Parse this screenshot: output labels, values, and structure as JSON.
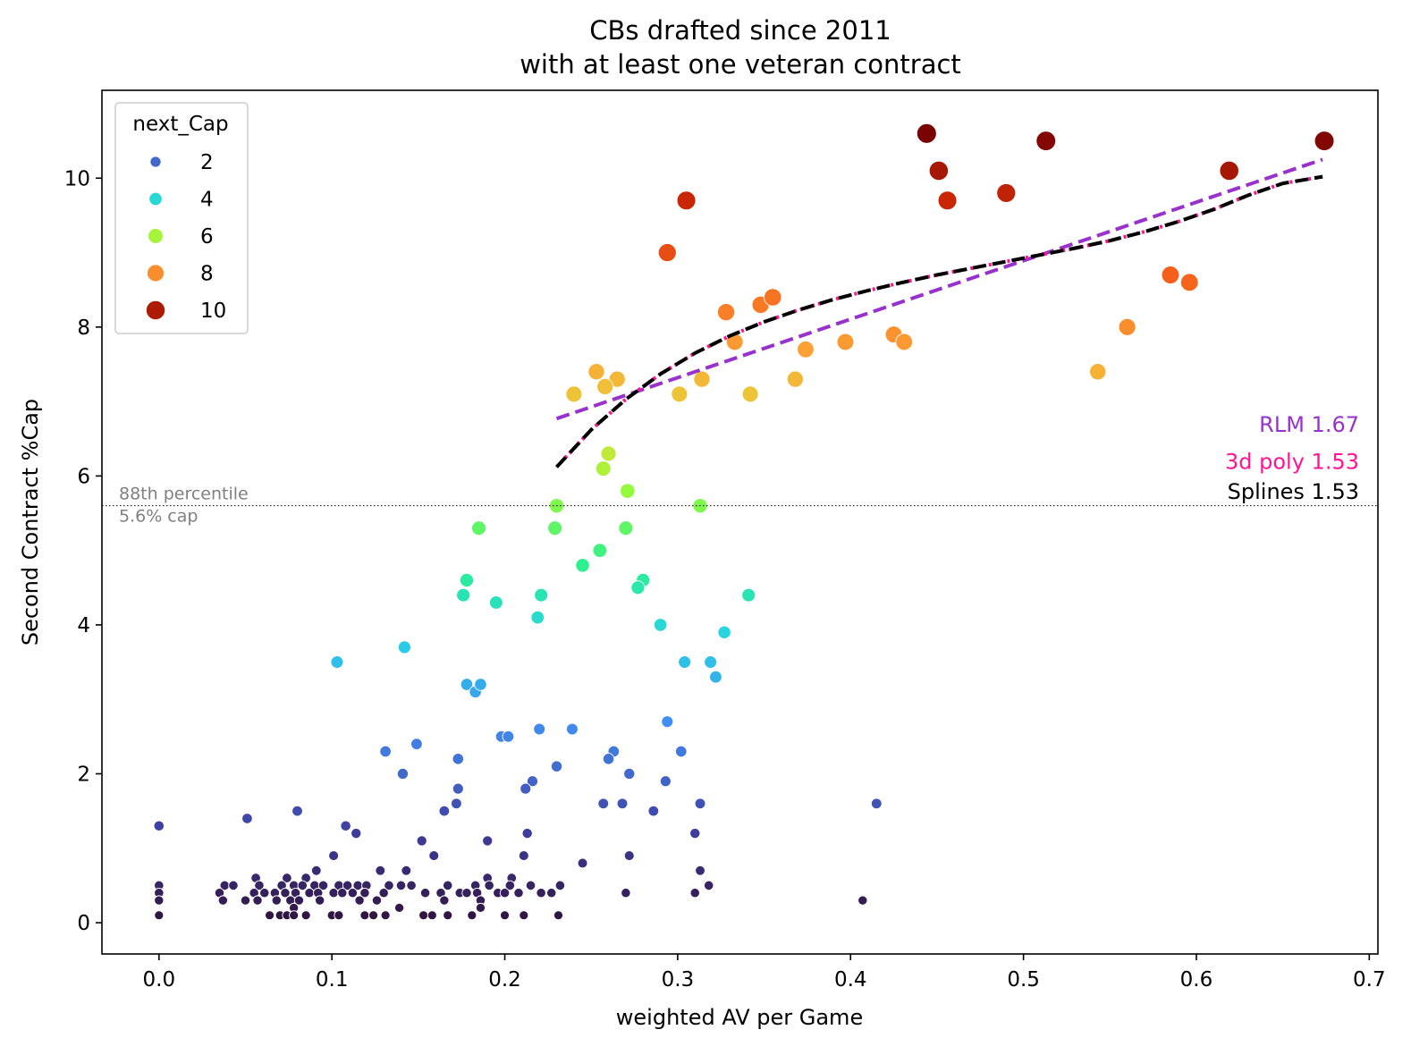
{
  "chart_data": {
    "type": "scatter",
    "title_line1": "CBs drafted since 2011",
    "title_line2": "with at least one veteran contract",
    "xlabel": "weighted AV per Game",
    "ylabel": "Second Contract %Cap",
    "xlim": [
      -0.033,
      0.705
    ],
    "ylim": [
      -0.42,
      11.18
    ],
    "x_ticks": [
      0.0,
      0.1,
      0.2,
      0.3,
      0.4,
      0.5,
      0.6,
      0.7
    ],
    "x_tick_labels": [
      "0.0",
      "0.1",
      "0.2",
      "0.3",
      "0.4",
      "0.5",
      "0.6",
      "0.7"
    ],
    "y_ticks": [
      0,
      2,
      4,
      6,
      8,
      10
    ],
    "y_tick_labels": [
      "0",
      "2",
      "4",
      "6",
      "8",
      "10"
    ],
    "grid": false,
    "legend": {
      "title": "next_Cap",
      "placement": "top-left",
      "entries": [
        {
          "label": "2",
          "value": 2
        },
        {
          "label": "4",
          "value": 4
        },
        {
          "label": "6",
          "value": 6
        },
        {
          "label": "8",
          "value": 8
        },
        {
          "label": "10",
          "value": 10
        }
      ]
    },
    "reference_line": {
      "y": 5.6,
      "label_line1": "88th percentile",
      "label_line2": "5.6% cap",
      "color": "#808080"
    },
    "fits": [
      {
        "label": "RLM 1.67",
        "color": "#9932CC",
        "style": "dashed",
        "x": [
          0.23,
          0.673
        ],
        "y": [
          6.77,
          10.25
        ]
      },
      {
        "label": "3d poly 1.53",
        "color": "#FF1493",
        "style": "dotted",
        "x": [
          0.23,
          0.25,
          0.27,
          0.29,
          0.31,
          0.33,
          0.35,
          0.37,
          0.39,
          0.41,
          0.43,
          0.45,
          0.47,
          0.49,
          0.51,
          0.53,
          0.55,
          0.57,
          0.59,
          0.61,
          0.63,
          0.65,
          0.673
        ],
        "y": [
          6.12,
          6.62,
          7.03,
          7.37,
          7.65,
          7.88,
          8.07,
          8.23,
          8.37,
          8.49,
          8.6,
          8.7,
          8.79,
          8.88,
          8.97,
          9.06,
          9.16,
          9.28,
          9.42,
          9.58,
          9.77,
          9.93,
          10.02
        ]
      },
      {
        "label": "Splines 1.53",
        "color": "#000000",
        "style": "dashed",
        "x": [
          0.23,
          0.25,
          0.27,
          0.29,
          0.31,
          0.33,
          0.35,
          0.37,
          0.39,
          0.41,
          0.43,
          0.45,
          0.47,
          0.49,
          0.51,
          0.53,
          0.55,
          0.57,
          0.59,
          0.61,
          0.63,
          0.65,
          0.673
        ],
        "y": [
          6.12,
          6.62,
          7.03,
          7.37,
          7.65,
          7.88,
          8.07,
          8.23,
          8.37,
          8.49,
          8.6,
          8.7,
          8.79,
          8.88,
          8.97,
          9.06,
          9.16,
          9.28,
          9.42,
          9.58,
          9.77,
          9.93,
          10.02
        ]
      }
    ],
    "annotations": [
      {
        "text": "RLM 1.67",
        "color": "#9932CC",
        "y": 6.7
      },
      {
        "text": "3d poly 1.53",
        "color": "#FF1493",
        "y": 6.2
      },
      {
        "text": "Splines 1.53",
        "color": "#000000",
        "y": 5.8
      }
    ],
    "points": [
      [
        0.444,
        10.6
      ],
      [
        0.513,
        10.5
      ],
      [
        0.674,
        10.5
      ],
      [
        0.451,
        10.1
      ],
      [
        0.619,
        10.1
      ],
      [
        0.305,
        9.7
      ],
      [
        0.456,
        9.7
      ],
      [
        0.49,
        9.8
      ],
      [
        0.294,
        9.0
      ],
      [
        0.328,
        8.2
      ],
      [
        0.348,
        8.3
      ],
      [
        0.355,
        8.4
      ],
      [
        0.585,
        8.7
      ],
      [
        0.596,
        8.6
      ],
      [
        0.333,
        7.8
      ],
      [
        0.425,
        7.9
      ],
      [
        0.431,
        7.8
      ],
      [
        0.56,
        8.0
      ],
      [
        0.374,
        7.7
      ],
      [
        0.397,
        7.8
      ],
      [
        0.253,
        7.4
      ],
      [
        0.265,
        7.3
      ],
      [
        0.258,
        7.2
      ],
      [
        0.314,
        7.3
      ],
      [
        0.368,
        7.3
      ],
      [
        0.543,
        7.4
      ],
      [
        0.24,
        7.1
      ],
      [
        0.301,
        7.1
      ],
      [
        0.342,
        7.1
      ],
      [
        0.26,
        6.3
      ],
      [
        0.257,
        6.1
      ],
      [
        0.23,
        5.6
      ],
      [
        0.313,
        5.6
      ],
      [
        0.271,
        5.8
      ],
      [
        0.185,
        5.3
      ],
      [
        0.229,
        5.3
      ],
      [
        0.27,
        5.3
      ],
      [
        0.255,
        5.0
      ],
      [
        0.245,
        4.8
      ],
      [
        0.178,
        4.6
      ],
      [
        0.176,
        4.4
      ],
      [
        0.195,
        4.3
      ],
      [
        0.221,
        4.4
      ],
      [
        0.28,
        4.6
      ],
      [
        0.277,
        4.5
      ],
      [
        0.341,
        4.4
      ],
      [
        0.219,
        4.1
      ],
      [
        0.29,
        4.0
      ],
      [
        0.327,
        3.9
      ],
      [
        0.142,
        3.7
      ],
      [
        0.103,
        3.5
      ],
      [
        0.304,
        3.5
      ],
      [
        0.319,
        3.5
      ],
      [
        0.322,
        3.3
      ],
      [
        0.178,
        3.2
      ],
      [
        0.183,
        3.1
      ],
      [
        0.186,
        3.2
      ],
      [
        0.294,
        2.7
      ],
      [
        0.198,
        2.5
      ],
      [
        0.202,
        2.5
      ],
      [
        0.22,
        2.6
      ],
      [
        0.239,
        2.6
      ],
      [
        0.149,
        2.4
      ],
      [
        0.131,
        2.3
      ],
      [
        0.263,
        2.3
      ],
      [
        0.302,
        2.3
      ],
      [
        0.173,
        2.2
      ],
      [
        0.26,
        2.2
      ],
      [
        0.23,
        2.1
      ],
      [
        0.141,
        2.0
      ],
      [
        0.272,
        2.0
      ],
      [
        0.216,
        1.9
      ],
      [
        0.293,
        1.9
      ],
      [
        0.173,
        1.8
      ],
      [
        0.212,
        1.8
      ],
      [
        0.172,
        1.6
      ],
      [
        0.257,
        1.6
      ],
      [
        0.268,
        1.6
      ],
      [
        0.313,
        1.6
      ],
      [
        0.415,
        1.6
      ],
      [
        0.08,
        1.5
      ],
      [
        0.165,
        1.5
      ],
      [
        0.286,
        1.5
      ],
      [
        0.051,
        1.4
      ],
      [
        0.0,
        1.3
      ],
      [
        0.108,
        1.3
      ],
      [
        0.114,
        1.2
      ],
      [
        0.213,
        1.2
      ],
      [
        0.31,
        1.2
      ],
      [
        0.152,
        1.1
      ],
      [
        0.19,
        1.1
      ],
      [
        0.101,
        0.9
      ],
      [
        0.159,
        0.9
      ],
      [
        0.211,
        0.9
      ],
      [
        0.272,
        0.9
      ],
      [
        0.245,
        0.8
      ],
      [
        0.128,
        0.7
      ],
      [
        0.143,
        0.7
      ],
      [
        0.091,
        0.7
      ],
      [
        0.313,
        0.7
      ],
      [
        0.056,
        0.6
      ],
      [
        0.074,
        0.6
      ],
      [
        0.085,
        0.6
      ],
      [
        0.19,
        0.6
      ],
      [
        0.204,
        0.6
      ],
      [
        0.0,
        0.5
      ],
      [
        0.038,
        0.5
      ],
      [
        0.043,
        0.5
      ],
      [
        0.058,
        0.5
      ],
      [
        0.071,
        0.5
      ],
      [
        0.078,
        0.5
      ],
      [
        0.083,
        0.5
      ],
      [
        0.09,
        0.5
      ],
      [
        0.095,
        0.5
      ],
      [
        0.104,
        0.5
      ],
      [
        0.109,
        0.5
      ],
      [
        0.115,
        0.5
      ],
      [
        0.12,
        0.5
      ],
      [
        0.133,
        0.5
      ],
      [
        0.14,
        0.5
      ],
      [
        0.146,
        0.5
      ],
      [
        0.167,
        0.5
      ],
      [
        0.183,
        0.5
      ],
      [
        0.191,
        0.5
      ],
      [
        0.203,
        0.5
      ],
      [
        0.215,
        0.5
      ],
      [
        0.232,
        0.5
      ],
      [
        0.318,
        0.5
      ],
      [
        0.0,
        0.4
      ],
      [
        0.035,
        0.4
      ],
      [
        0.055,
        0.4
      ],
      [
        0.061,
        0.4
      ],
      [
        0.067,
        0.4
      ],
      [
        0.073,
        0.4
      ],
      [
        0.079,
        0.4
      ],
      [
        0.087,
        0.4
      ],
      [
        0.092,
        0.4
      ],
      [
        0.101,
        0.4
      ],
      [
        0.106,
        0.4
      ],
      [
        0.112,
        0.4
      ],
      [
        0.119,
        0.4
      ],
      [
        0.13,
        0.4
      ],
      [
        0.154,
        0.4
      ],
      [
        0.163,
        0.4
      ],
      [
        0.174,
        0.4
      ],
      [
        0.178,
        0.4
      ],
      [
        0.184,
        0.4
      ],
      [
        0.196,
        0.4
      ],
      [
        0.2,
        0.4
      ],
      [
        0.208,
        0.4
      ],
      [
        0.221,
        0.4
      ],
      [
        0.227,
        0.4
      ],
      [
        0.27,
        0.4
      ],
      [
        0.31,
        0.4
      ],
      [
        0.0,
        0.3
      ],
      [
        0.037,
        0.3
      ],
      [
        0.05,
        0.3
      ],
      [
        0.057,
        0.3
      ],
      [
        0.068,
        0.3
      ],
      [
        0.076,
        0.3
      ],
      [
        0.081,
        0.3
      ],
      [
        0.093,
        0.3
      ],
      [
        0.116,
        0.3
      ],
      [
        0.126,
        0.3
      ],
      [
        0.165,
        0.3
      ],
      [
        0.186,
        0.3
      ],
      [
        0.407,
        0.3
      ],
      [
        0.078,
        0.2
      ],
      [
        0.139,
        0.2
      ],
      [
        0.186,
        0.2
      ],
      [
        0.0,
        0.1
      ],
      [
        0.064,
        0.1
      ],
      [
        0.07,
        0.1
      ],
      [
        0.074,
        0.1
      ],
      [
        0.078,
        0.1
      ],
      [
        0.085,
        0.1
      ],
      [
        0.1,
        0.1
      ],
      [
        0.104,
        0.1
      ],
      [
        0.119,
        0.1
      ],
      [
        0.124,
        0.1
      ],
      [
        0.131,
        0.1
      ],
      [
        0.153,
        0.1
      ],
      [
        0.158,
        0.1
      ],
      [
        0.167,
        0.1
      ],
      [
        0.181,
        0.1
      ],
      [
        0.2,
        0.1
      ],
      [
        0.211,
        0.1
      ],
      [
        0.231,
        0.1
      ]
    ]
  }
}
